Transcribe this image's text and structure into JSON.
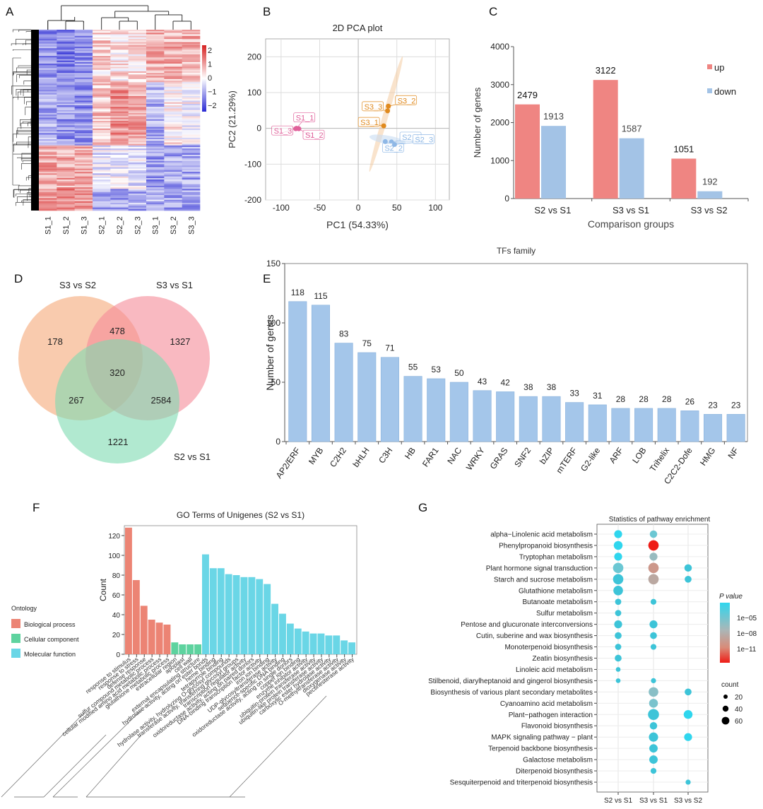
{
  "panel_labels": [
    "A",
    "B",
    "C",
    "D",
    "E",
    "F",
    "G"
  ],
  "chart_data": [
    {
      "panel": "A",
      "type": "heatmap",
      "title": "",
      "columns": [
        "S1_1",
        "S1_2",
        "S1_3",
        "S2_1",
        "S2_2",
        "S2_3",
        "S3_1",
        "S3_2",
        "S3_3"
      ],
      "colorbar": {
        "ticks": [
          "2",
          "1",
          "0",
          "−1",
          "−2"
        ],
        "min": -2.5,
        "max": 2.5,
        "low_color": "#2a2ad4",
        "mid_color": "#ffffff",
        "high_color": "#d62020"
      },
      "row_blocks": [
        {
          "label": "block1",
          "fraction": 0.29,
          "pattern": [
            -1.3,
            -1.5,
            -1.3,
            0.5,
            0.3,
            0.4,
            0.9,
            0.9,
            0.8
          ]
        },
        {
          "label": "block2",
          "fraction": 0.35,
          "pattern": [
            -1.0,
            -1.2,
            -1.3,
            0.6,
            1.2,
            1.0,
            -0.9,
            0.2,
            0.0
          ]
        },
        {
          "label": "block3",
          "fraction": 0.24,
          "pattern": [
            1.0,
            1.0,
            1.0,
            -0.3,
            -0.2,
            -0.3,
            -1.2,
            -1.0,
            -1.0
          ]
        },
        {
          "label": "block4",
          "fraction": 0.12,
          "pattern": [
            1.1,
            1.2,
            1.1,
            -1.0,
            -1.1,
            -1.0,
            -0.9,
            -1.0,
            -1.1
          ]
        }
      ]
    },
    {
      "panel": "B",
      "type": "scatter",
      "title": "2D PCA plot",
      "xlabel": "PC1  (54.33%)",
      "ylabel": "PC2  (21.29%)",
      "xlim": [
        -120,
        118
      ],
      "ylim": [
        -200,
        250
      ],
      "xticks": [
        -100,
        -50,
        0,
        50,
        100
      ],
      "yticks": [
        200,
        100,
        0,
        -100,
        -200
      ],
      "grid": true,
      "series": [
        {
          "name": "S1",
          "color": "#e0609a",
          "points": [
            {
              "label": "S1_1",
              "x": -80,
              "y": 0
            },
            {
              "label": "S1_2",
              "x": -77,
              "y": -1
            },
            {
              "label": "S1_3",
              "x": -81,
              "y": -1
            }
          ]
        },
        {
          "name": "S2",
          "color": "#8fb8e6",
          "points": [
            {
              "label": "S2_1",
              "x": 43,
              "y": -38
            },
            {
              "label": "S2_2",
              "x": 35,
              "y": -37
            },
            {
              "label": "S2_3",
              "x": 47,
              "y": -45
            }
          ]
        },
        {
          "name": "S3",
          "color": "#e08a1e",
          "points": [
            {
              "label": "S3_1",
              "x": 33,
              "y": 7
            },
            {
              "label": "S3_2",
              "x": 39,
              "y": 62
            },
            {
              "label": "S3_3",
              "x": 38,
              "y": 49
            }
          ]
        }
      ]
    },
    {
      "panel": "C",
      "type": "bar",
      "title": "",
      "xlabel": "Comparison groups",
      "ylabel": "Number of genes",
      "categories": [
        "S2 vs S1",
        "S3 vs S1",
        "S3 vs S2"
      ],
      "ylim": [
        0,
        4000
      ],
      "yticks": [
        0,
        1000,
        2000,
        3000,
        4000
      ],
      "legend_position": "top-right",
      "series": [
        {
          "name": "up",
          "color": "#ef8582",
          "values": [
            2479,
            3122,
            1051
          ]
        },
        {
          "name": "down",
          "color": "#a3c3e6",
          "values": [
            1913,
            1587,
            192
          ]
        }
      ]
    },
    {
      "panel": "D",
      "type": "venn",
      "sets": [
        {
          "name": "S3 vs S2",
          "color": "#f5a878"
        },
        {
          "name": "S3 vs S1",
          "color": "#f58a98"
        },
        {
          "name": "S2 vs S1",
          "color": "#7ddbb0"
        }
      ],
      "regions": {
        "S3vsS2_only": 178,
        "S3vsS1_only": 1327,
        "S2vsS1_only": 1221,
        "S3vsS2_S3vsS1": 478,
        "S3vsS2_S2vsS1": 267,
        "S3vsS1_S2vsS1": 2584,
        "all": 320
      }
    },
    {
      "panel": "E",
      "type": "bar",
      "title": "TFs family",
      "xlabel": "",
      "ylabel": "Number of genes",
      "ylim": [
        0,
        150
      ],
      "yticks": [
        0,
        50,
        100,
        150
      ],
      "color": "#a4c6ea",
      "categories": [
        "AP2/ERF",
        "MYB",
        "C2H2",
        "bHLH",
        "C3H",
        "HB",
        "FAR1",
        "NAC",
        "WRKY",
        "GRAS",
        "SNF2",
        "bZIP",
        "mTERF",
        "G2-like",
        "ARF",
        "LOB",
        "Trihelix",
        "C2C2-Dofe",
        "HMG",
        "NF"
      ],
      "values": [
        118,
        115,
        83,
        75,
        71,
        55,
        53,
        50,
        43,
        42,
        38,
        38,
        33,
        31,
        28,
        28,
        28,
        26,
        23,
        23
      ]
    },
    {
      "panel": "F",
      "type": "bar",
      "title": "GO Terms of Unigenes (S2 vs S1)",
      "xlabel": "",
      "ylabel": "Count",
      "ylim": [
        0,
        130
      ],
      "yticks": [
        0,
        20,
        40,
        60,
        80,
        100,
        120
      ],
      "legend_title": "Ontology",
      "legend": [
        {
          "name": "Biological process",
          "color": "#ec8474"
        },
        {
          "name": "Cellular component",
          "color": "#5ed39f"
        },
        {
          "name": "Molecular function",
          "color": "#6ad6e6"
        }
      ],
      "categories": [
        "response to stimulus",
        "response to stress",
        "defense response",
        "sulfur compound metabolic process",
        "cellular modified amino acid metabolic process",
        "glutathione metabolic process",
        "extracellular region",
        "apoplast",
        "cell wall",
        "external encapsulating structure",
        "hydrolase activity, acting on ester bonds",
        "heme binding",
        "tetrapyrrole binding",
        "hydrolase activity, hydrolyzing O-glycosyl compounds",
        "transferase activity, transferring glycosyl groups",
        "transcription regulator activity",
        "oxidoreductase activity, acting on paired donors",
        "DNA-binding transcription factor activity",
        "iron ion binding",
        "UDP-glycosyltransferase activity",
        "sequence-specific DNA binding",
        "oxidoreductase activity, acting on single donors",
        "copper ion binding",
        "enzyme inhibitor activity",
        "ubiquitin-protein transferase activity",
        "ubiquitin-like protein transferase activity",
        "carboxylic ester hydrolase activity",
        "O-methyltransferase activity",
        "dioxygenase activity",
        "pectinesterase activity"
      ],
      "ontology": [
        0,
        0,
        0,
        0,
        0,
        0,
        1,
        1,
        1,
        1,
        2,
        2,
        2,
        2,
        2,
        2,
        2,
        2,
        2,
        2,
        2,
        2,
        2,
        2,
        2,
        2,
        2,
        2,
        2,
        2
      ],
      "values": [
        128,
        75,
        49,
        35,
        32,
        30,
        12,
        10,
        10,
        10,
        101,
        87,
        87,
        81,
        80,
        78,
        78,
        76,
        71,
        51,
        41,
        31,
        26,
        23,
        21,
        21,
        19,
        19,
        14,
        12
      ]
    },
    {
      "panel": "G",
      "type": "scatter",
      "title": "Statistics of pathway enrichment",
      "x_categories": [
        "S2 vs S1",
        "S3 vs S1",
        "S3 vs S2"
      ],
      "y_categories": [
        "alpha−Linolenic acid metabolism",
        "Phenylpropanoid biosynthesis",
        "Tryptophan metabolism",
        "Plant hormone signal transduction",
        "Starch and sucrose metabolism",
        "Glutathione metabolism",
        "Butanoate metabolism",
        "Sulfur metabolism",
        "Pentose and glucuronate interconversions",
        "Cutin, suberine and wax biosynthesis",
        "Monoterpenoid biosynthesis",
        "Zeatin biosynthesis",
        "Linoleic acid metabolism",
        "Stilbenoid, diarylheptanoid and gingerol biosynthesis",
        "Biosynthesis of various plant secondary metabolites",
        "Cyanoamino acid metabolism",
        "Plant−pathogen interaction",
        "Flavonoid biosynthesis",
        "MAPK signaling pathway − plant",
        "Terpenoid backbone biosynthesis",
        "Galactose metabolism",
        "Diterpenoid biosynthesis",
        "Sesquiterpenoid and triterpenoid biosynthesis"
      ],
      "legend_p_title": "P value",
      "legend_p_ticks": [
        "1e−05",
        "1e−08",
        "1e−11"
      ],
      "legend_count_title": "count",
      "legend_count_ticks": [
        20,
        40,
        60
      ],
      "points": [
        {
          "y": 0,
          "x": 0,
          "count": 30,
          "logp": -4
        },
        {
          "y": 0,
          "x": 1,
          "count": 25,
          "logp": -6
        },
        {
          "y": 1,
          "x": 0,
          "count": 40,
          "logp": -4
        },
        {
          "y": 1,
          "x": 1,
          "count": 60,
          "logp": -13
        },
        {
          "y": 2,
          "x": 0,
          "count": 30,
          "logp": -4
        },
        {
          "y": 2,
          "x": 1,
          "count": 30,
          "logp": -7.5
        },
        {
          "y": 3,
          "x": 0,
          "count": 60,
          "logp": -6
        },
        {
          "y": 3,
          "x": 1,
          "count": 60,
          "logp": -10
        },
        {
          "y": 3,
          "x": 2,
          "count": 25,
          "logp": -5.5
        },
        {
          "y": 4,
          "x": 0,
          "count": 60,
          "logp": -5.5
        },
        {
          "y": 4,
          "x": 1,
          "count": 60,
          "logp": -9
        },
        {
          "y": 4,
          "x": 2,
          "count": 20,
          "logp": -5.5
        },
        {
          "y": 5,
          "x": 0,
          "count": 50,
          "logp": -5.5
        },
        {
          "y": 6,
          "x": 0,
          "count": 15,
          "logp": -5.5
        },
        {
          "y": 6,
          "x": 1,
          "count": 12,
          "logp": -5.5
        },
        {
          "y": 7,
          "x": 0,
          "count": 15,
          "logp": -5.5
        },
        {
          "y": 8,
          "x": 0,
          "count": 30,
          "logp": -5.5
        },
        {
          "y": 8,
          "x": 1,
          "count": 30,
          "logp": -5.5
        },
        {
          "y": 9,
          "x": 0,
          "count": 20,
          "logp": -5.5
        },
        {
          "y": 9,
          "x": 1,
          "count": 20,
          "logp": -5.5
        },
        {
          "y": 10,
          "x": 0,
          "count": 15,
          "logp": -5.5
        },
        {
          "y": 10,
          "x": 1,
          "count": 12,
          "logp": -5.5
        },
        {
          "y": 11,
          "x": 0,
          "count": 20,
          "logp": -5.5
        },
        {
          "y": 12,
          "x": 0,
          "count": 6,
          "logp": -5.5
        },
        {
          "y": 13,
          "x": 0,
          "count": 6,
          "logp": -5.5
        },
        {
          "y": 13,
          "x": 1,
          "count": 8,
          "logp": -5.5
        },
        {
          "y": 14,
          "x": 1,
          "count": 50,
          "logp": -7
        },
        {
          "y": 14,
          "x": 2,
          "count": 20,
          "logp": -5.5
        },
        {
          "y": 15,
          "x": 1,
          "count": 40,
          "logp": -6.5
        },
        {
          "y": 16,
          "x": 1,
          "count": 70,
          "logp": -5
        },
        {
          "y": 16,
          "x": 2,
          "count": 40,
          "logp": -4
        },
        {
          "y": 17,
          "x": 1,
          "count": 25,
          "logp": -5.5
        },
        {
          "y": 18,
          "x": 1,
          "count": 45,
          "logp": -5.5
        },
        {
          "y": 18,
          "x": 2,
          "count": 30,
          "logp": -4
        },
        {
          "y": 19,
          "x": 1,
          "count": 35,
          "logp": -5.5
        },
        {
          "y": 20,
          "x": 1,
          "count": 35,
          "logp": -5.5
        },
        {
          "y": 21,
          "x": 1,
          "count": 12,
          "logp": -5.5
        },
        {
          "y": 22,
          "x": 2,
          "count": 8,
          "logp": -5.5
        }
      ]
    }
  ]
}
